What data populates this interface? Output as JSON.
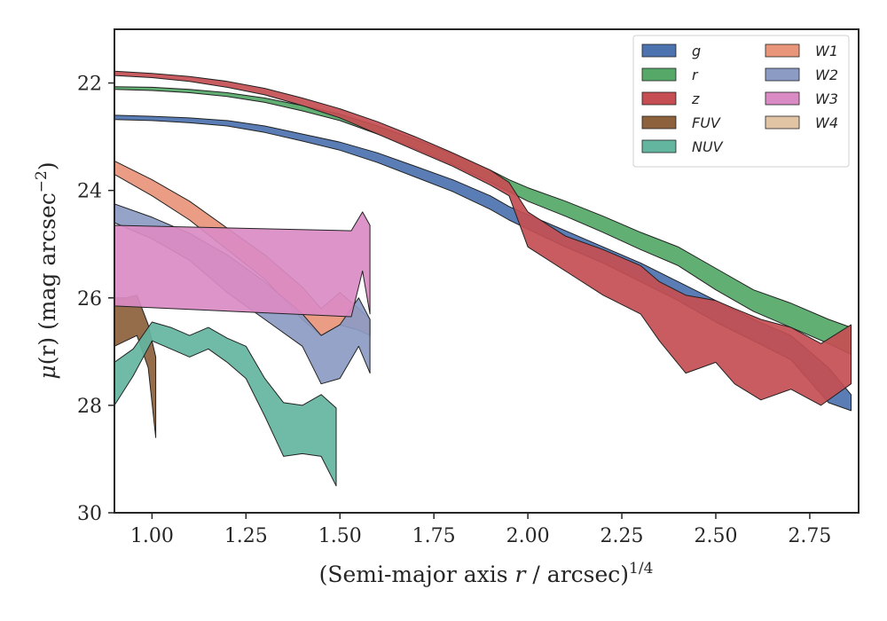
{
  "chart_data": {
    "type": "area",
    "xlabel": "(Semi-major axis r / arcsec)^1/4",
    "xlabel_parts": {
      "open": "(Semi-major axis ",
      "var": "r",
      "rest": " / arcsec)",
      "sup": "1/4"
    },
    "ylabel": "μ(r) (mag arcsec^−2)",
    "ylabel_parts": {
      "var": "μ",
      "paren": "(r)",
      "rest": " (mag arcsec",
      "sup": "−2",
      "close": ")"
    },
    "xlim": [
      0.9,
      2.88
    ],
    "ylim": [
      30,
      21
    ],
    "y_inverted": true,
    "xticks": [
      1.0,
      1.25,
      1.5,
      1.75,
      2.0,
      2.25,
      2.5,
      2.75
    ],
    "xtick_labels": [
      "1.00",
      "1.25",
      "1.50",
      "1.75",
      "2.00",
      "2.25",
      "2.50",
      "2.75"
    ],
    "yticks": [
      22,
      24,
      26,
      28,
      30
    ],
    "ytick_labels": [
      "22",
      "24",
      "26",
      "28",
      "30"
    ],
    "grid": false,
    "legend": {
      "placement": "top-right",
      "columns": 2
    },
    "series": [
      {
        "name": "g",
        "color": "#4c72b0",
        "x": [
          0.9,
          1.0,
          1.1,
          1.2,
          1.3,
          1.4,
          1.5,
          1.6,
          1.7,
          1.8,
          1.9,
          1.95,
          2.0,
          2.1,
          2.2,
          2.3,
          2.4,
          2.5,
          2.6,
          2.7,
          2.8,
          2.86
        ],
        "lower": [
          22.6,
          22.62,
          22.65,
          22.7,
          22.8,
          22.95,
          23.1,
          23.3,
          23.55,
          23.8,
          24.1,
          24.3,
          24.45,
          24.75,
          25.05,
          25.35,
          25.7,
          26.05,
          26.4,
          26.7,
          27.3,
          27.8
        ],
        "upper": [
          22.68,
          22.7,
          22.74,
          22.8,
          22.92,
          23.08,
          23.25,
          23.48,
          23.75,
          24.02,
          24.35,
          24.55,
          24.72,
          25.05,
          25.35,
          25.7,
          26.05,
          26.45,
          26.8,
          27.15,
          27.95,
          28.1
        ]
      },
      {
        "name": "r",
        "color": "#55a868",
        "x": [
          0.9,
          1.0,
          1.1,
          1.2,
          1.3,
          1.4,
          1.5,
          1.6,
          1.7,
          1.8,
          1.9,
          1.95,
          2.0,
          2.1,
          2.2,
          2.3,
          2.4,
          2.5,
          2.6,
          2.7,
          2.8,
          2.86
        ],
        "lower": [
          22.07,
          22.08,
          22.12,
          22.18,
          22.28,
          22.42,
          22.58,
          22.8,
          23.05,
          23.32,
          23.62,
          23.8,
          23.95,
          24.2,
          24.48,
          24.78,
          25.05,
          25.45,
          25.85,
          26.1,
          26.4,
          26.55
        ],
        "upper": [
          22.12,
          22.14,
          22.18,
          22.25,
          22.36,
          22.52,
          22.7,
          22.95,
          23.22,
          23.52,
          23.85,
          24.02,
          24.2,
          24.48,
          24.78,
          25.1,
          25.4,
          25.85,
          26.25,
          26.55,
          26.85,
          27.05
        ]
      },
      {
        "name": "z",
        "color": "#c44e52",
        "x": [
          0.9,
          1.0,
          1.1,
          1.2,
          1.3,
          1.4,
          1.5,
          1.6,
          1.7,
          1.8,
          1.9,
          1.95,
          2.0,
          2.1,
          2.2,
          2.3,
          2.35,
          2.42,
          2.5,
          2.55,
          2.62,
          2.7,
          2.78,
          2.86
        ],
        "lower": [
          21.78,
          21.82,
          21.88,
          21.97,
          22.1,
          22.28,
          22.48,
          22.72,
          23.0,
          23.3,
          23.62,
          23.85,
          24.4,
          24.85,
          25.1,
          25.4,
          25.7,
          25.95,
          26.05,
          26.2,
          26.4,
          26.55,
          26.85,
          26.5
        ],
        "upper": [
          21.86,
          21.9,
          21.97,
          22.08,
          22.22,
          22.42,
          22.65,
          22.95,
          23.25,
          23.55,
          23.9,
          24.1,
          25.05,
          25.5,
          25.95,
          26.3,
          26.8,
          27.4,
          27.2,
          27.6,
          27.9,
          27.7,
          28.0,
          27.6
        ]
      },
      {
        "name": "FUV",
        "color": "#8c613c",
        "x": [
          0.9,
          0.93,
          0.96,
          0.99,
          1.01
        ],
        "lower": [
          26.0,
          26.0,
          25.95,
          26.5,
          27.1
        ],
        "upper": [
          26.9,
          26.8,
          26.7,
          27.3,
          28.6
        ]
      },
      {
        "name": "NUV",
        "color": "#64b5a0",
        "x": [
          0.9,
          0.95,
          1.0,
          1.05,
          1.1,
          1.15,
          1.2,
          1.25,
          1.3,
          1.35,
          1.4,
          1.45,
          1.49
        ],
        "lower": [
          27.2,
          26.95,
          26.45,
          26.55,
          26.7,
          26.55,
          26.75,
          26.9,
          27.5,
          27.95,
          28.0,
          27.8,
          28.05
        ],
        "upper": [
          28.0,
          27.45,
          26.8,
          26.95,
          27.1,
          26.95,
          27.2,
          27.5,
          28.2,
          28.95,
          28.9,
          28.95,
          29.5
        ]
      },
      {
        "name": "W1",
        "color": "#e8957a",
        "x": [
          0.9,
          1.0,
          1.1,
          1.2,
          1.3,
          1.4,
          1.45,
          1.5,
          1.55,
          1.58
        ],
        "lower": [
          23.45,
          23.8,
          24.2,
          24.7,
          25.2,
          25.8,
          26.2,
          25.9,
          26.2,
          26.4
        ],
        "upper": [
          23.7,
          24.1,
          24.55,
          25.1,
          25.65,
          26.4,
          26.7,
          26.5,
          26.6,
          26.7
        ]
      },
      {
        "name": "W2",
        "color": "#8c9bc4",
        "x": [
          0.9,
          1.0,
          1.1,
          1.2,
          1.3,
          1.4,
          1.45,
          1.5,
          1.55,
          1.58
        ],
        "lower": [
          24.25,
          24.5,
          24.8,
          25.2,
          25.7,
          26.3,
          26.7,
          26.5,
          26.0,
          26.4
        ],
        "upper": [
          24.6,
          24.9,
          25.3,
          25.9,
          26.4,
          26.9,
          27.6,
          27.5,
          26.9,
          27.4
        ]
      },
      {
        "name": "W3",
        "color": "#da8bc3",
        "x": [
          0.9,
          1.53,
          1.56,
          1.58
        ],
        "lower": [
          24.65,
          24.75,
          24.4,
          24.65
        ],
        "upper": [
          26.15,
          26.35,
          25.5,
          26.3
        ]
      },
      {
        "name": "W4",
        "color": "#e0c4a3",
        "x": [],
        "lower": [],
        "upper": []
      }
    ]
  }
}
